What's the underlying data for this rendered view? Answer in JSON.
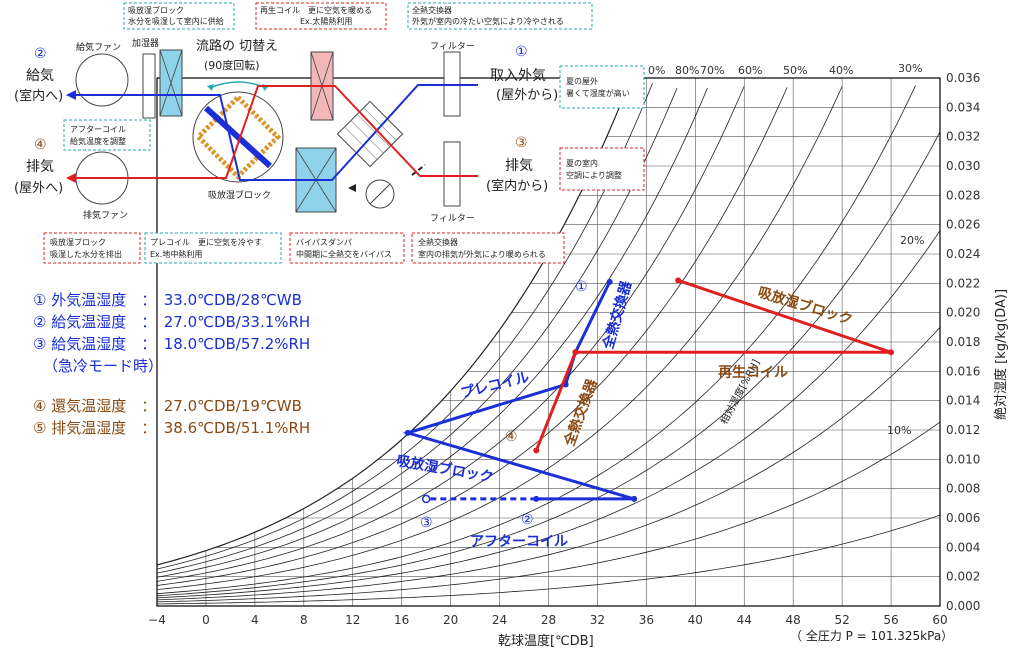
{
  "colors": {
    "blue": "#1a2fd6",
    "red": "#e02020",
    "brown": "#8a4a12",
    "teal": "#2aa8b0",
    "coil_red": "#f2b8b8",
    "coil_blue": "#8fd3ea"
  },
  "schematic": {
    "supply_fan": "給気ファン",
    "humidifier": "加湿器",
    "path_switch": "流路の 切替え",
    "rotation": "(90度回転)",
    "desiccant_block_label": "吸放湿ブロック",
    "exhaust_fan": "排気ファン",
    "filter_top": "フィルター",
    "filter_bottom": "フィルター",
    "n1": "①",
    "n2": "②",
    "n3": "③",
    "n4": "④",
    "supply_air": "給気",
    "supply_air_sub": "(室内へ)",
    "exhaust_air": "排気",
    "exhaust_air_sub": "(屋外へ)",
    "intake_air": "取入外気",
    "intake_air_sub": "(屋外から)",
    "return_air": "排気",
    "return_air_sub": "(室内から)",
    "box_block_top_1": "吸放湿ブロック",
    "box_block_top_2": "水分を吸湿して室内に供給",
    "box_reheat_1": "再生コイル　更に空気を暖める",
    "box_reheat_2": "Ex.太陽熱利用",
    "box_hx_top_1": "全熱交換器",
    "box_hx_top_2": "外気が室内の冷たい空気により冷やされる",
    "box_summer_out_1": "夏の屋外",
    "box_summer_out_2": "暑くて湿度が高い",
    "box_after_1": "アフターコイル",
    "box_after_2": "給気温度を調整",
    "box_summer_in_1": "夏の室内",
    "box_summer_in_2": "空調により調整",
    "box_block_bot_1": "吸放湿ブロック",
    "box_block_bot_2": "吸湿した水分を排出",
    "box_precoil_1": "プレコイル　更に空気を冷やす",
    "box_precoil_2": "Ex.地中熱利用",
    "box_bypass_1": "バイパスダンパ",
    "box_bypass_2": "中間期に全熱交をバイパス",
    "box_hx_bot_1": "全熱交換器",
    "box_hx_bot_2": "室内の排気が外気により暖められる"
  },
  "legend": {
    "l1": "① 外気温湿度　：　33.0℃DB/28℃WB",
    "l2": "② 給気温湿度　：　27.0℃DB/33.1%RH",
    "l3": "③ 給気温湿度　：　18.0℃DB/57.2%RH",
    "l3b": "（急冷モード時）",
    "l4": "④ 還気温湿度　：　27.0℃DB/19℃WB",
    "l5": "⑤ 排気温湿度　：　38.6℃DB/51.1%RH"
  },
  "chart_data": {
    "type": "line",
    "xlabel": "乾球温度[℃DB]",
    "ylabel": "絶対湿度 [kg/kg(DA)]",
    "xlim": [
      -4,
      60
    ],
    "ylim": [
      0.0,
      0.036
    ],
    "x_ticks": [
      "−4",
      "0",
      "4",
      "8",
      "12",
      "16",
      "20",
      "24",
      "28",
      "32",
      "36",
      "40",
      "44",
      "48",
      "52",
      "56",
      "60"
    ],
    "y_ticks": [
      "0.000",
      "0.002",
      "0.004",
      "0.006",
      "0.008",
      "0.010",
      "0.012",
      "0.014",
      "0.016",
      "0.018",
      "0.020",
      "0.022",
      "0.024",
      "0.026",
      "0.028",
      "0.030",
      "0.032",
      "0.034",
      "0.036"
    ],
    "rh_labels": [
      "0%",
      "80%",
      "70%",
      "60%",
      "50%",
      "40%",
      "30%",
      "20%",
      "10%"
    ],
    "rh_axis_label": "相対湿度[%RH]",
    "pressure_note": "（ 全圧力 P = 101.325kPa）",
    "rh_curves": [
      100,
      90,
      80,
      70,
      60,
      50,
      40,
      30,
      25,
      20,
      15,
      10,
      5
    ],
    "points": [
      {
        "name": "①",
        "t": 33.0,
        "x": 0.0221
      },
      {
        "name": "②",
        "t": 27.0,
        "x": 0.0073
      },
      {
        "name": "③",
        "t": 18.0,
        "x": 0.0073
      },
      {
        "name": "④",
        "t": 27.0,
        "x": 0.0106
      },
      {
        "name": "⑤",
        "t": 38.6,
        "x": 0.0222
      }
    ],
    "series": [
      {
        "color": "blue",
        "points": [
          [
            33.0,
            0.0221
          ],
          [
            30.2,
            0.0173
          ],
          [
            29.4,
            0.0151
          ],
          [
            16.5,
            0.0118
          ],
          [
            35.0,
            0.0073
          ],
          [
            27.0,
            0.0073
          ]
        ]
      },
      {
        "color": "blue",
        "dashed": true,
        "points": [
          [
            27.0,
            0.0073
          ],
          [
            18.0,
            0.0073
          ]
        ]
      },
      {
        "color": "red",
        "points": [
          [
            27.0,
            0.0106
          ],
          [
            30.2,
            0.0173
          ],
          [
            56.0,
            0.0173
          ],
          [
            38.6,
            0.0222
          ]
        ]
      }
    ],
    "process_labels": {
      "hx_blue": "全熱交換器",
      "precoil": "プレコイル",
      "desiccant_blue": "吸放湿ブロック",
      "aftercoil": "アフターコイル",
      "hx_red": "全熱交換器",
      "reheat": "再生コイル",
      "desiccant_red": "吸放湿ブロック"
    }
  }
}
